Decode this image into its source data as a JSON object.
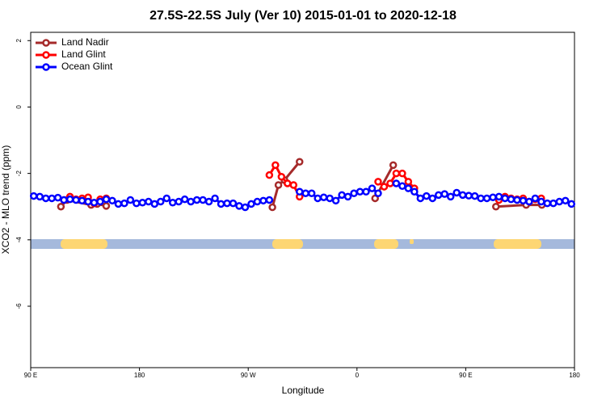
{
  "chart_data": {
    "type": "line",
    "title": "27.5S-22.5S July (Ver 10)   2015-01-01 to 2020-12-18",
    "x_label": "Longitude",
    "y_label": "XCO2 - MLO trend (ppm)",
    "xlim": [
      90,
      540
    ],
    "xticks": [
      {
        "value": 90,
        "label": "90 E"
      },
      {
        "value": 180,
        "label": "180"
      },
      {
        "value": 270,
        "label": "90 W"
      },
      {
        "value": 360,
        "label": "0"
      },
      {
        "value": 450,
        "label": "90 E"
      },
      {
        "value": 540,
        "label": "180"
      }
    ],
    "ylim": [
      -7.85,
      2.25
    ],
    "yticks": [
      2,
      0,
      -2,
      -4,
      -6
    ],
    "legend": "top-left",
    "series": [
      {
        "name": "Land Nadir",
        "color": "#a52a2a",
        "x": [
          115,
          120,
          140,
          145,
          152.5,
          200,
          290,
          295,
          300,
          312.5,
          350,
          375,
          390,
          430,
          475,
          500,
          513
        ],
        "values": [
          -3.0,
          -2.8,
          -2.95,
          -2.92,
          -2.98,
          null,
          -3.02,
          -2.35,
          -2.2,
          -1.65,
          null,
          -2.75,
          -1.75,
          null,
          -3.0,
          -2.95,
          -2.95
        ]
      },
      {
        "name": "Land Glint",
        "color": "#ff0000",
        "x": [
          117.5,
          122.5,
          127.5,
          132.5,
          137.5,
          142.5,
          147.5,
          152.5,
          200,
          287.5,
          292.5,
          297.5,
          302.5,
          307.5,
          312.5,
          350,
          377.5,
          382.5,
          387.5,
          392.5,
          397.5,
          402.5,
          407.5,
          440,
          477.5,
          482.5,
          487.5,
          492.5,
          497.5,
          502.5,
          507.5,
          512.5
        ],
        "values": [
          -2.8,
          -2.7,
          -2.78,
          -2.75,
          -2.72,
          -2.9,
          -2.78,
          -2.75,
          null,
          -2.05,
          -1.75,
          -2.1,
          -2.3,
          -2.35,
          -2.7,
          null,
          -2.25,
          -2.4,
          -2.3,
          -2.0,
          -2.0,
          -2.25,
          -2.45,
          null,
          -2.8,
          -2.7,
          -2.75,
          -2.78,
          -2.75,
          -2.85,
          -2.78,
          -2.75
        ]
      },
      {
        "name": "Ocean Glint",
        "color": "#0000ff",
        "x": [
          92.5,
          97.5,
          102.5,
          107.5,
          112.5,
          117.5,
          122.5,
          127.5,
          132.5,
          137.5,
          142.5,
          147.5,
          152.5,
          157.5,
          162.5,
          167.5,
          172.5,
          177.5,
          182.5,
          187.5,
          192.5,
          197.5,
          202.5,
          207.5,
          212.5,
          217.5,
          222.5,
          227.5,
          232.5,
          237.5,
          242.5,
          247.5,
          252.5,
          257.5,
          262.5,
          267.5,
          272.5,
          277.5,
          282.5,
          287.5,
          292.5,
          297.5,
          302.5,
          307.5,
          312.5,
          317.5,
          322.5,
          327.5,
          332.5,
          337.5,
          342.5,
          347.5,
          352.5,
          357.5,
          362.5,
          367.5,
          372.5,
          377.5,
          382.5,
          387.5,
          392.5,
          397.5,
          402.5,
          407.5,
          412.5,
          417.5,
          422.5,
          427.5,
          432.5,
          437.5,
          442.5,
          447.5,
          452.5,
          457.5,
          462.5,
          467.5,
          472.5,
          477.5,
          482.5,
          487.5,
          492.5,
          497.5,
          502.5,
          507.5,
          512.5,
          517.5,
          522.5,
          527.5,
          532.5,
          537.5
        ],
        "values": [
          -2.68,
          -2.7,
          -2.75,
          -2.75,
          -2.73,
          -2.8,
          -2.78,
          -2.8,
          -2.82,
          -2.85,
          -2.88,
          -2.85,
          -2.78,
          -2.82,
          -2.92,
          -2.9,
          -2.8,
          -2.9,
          -2.88,
          -2.85,
          -2.92,
          -2.85,
          -2.75,
          -2.88,
          -2.85,
          -2.78,
          -2.85,
          -2.8,
          -2.8,
          -2.85,
          -2.75,
          -2.92,
          -2.9,
          -2.9,
          -2.98,
          -3.02,
          -2.92,
          -2.85,
          -2.82,
          -2.8,
          null,
          null,
          null,
          null,
          -2.55,
          -2.6,
          -2.6,
          -2.75,
          -2.72,
          -2.75,
          -2.82,
          -2.65,
          -2.7,
          -2.6,
          -2.55,
          -2.55,
          -2.45,
          -2.6,
          null,
          null,
          -2.3,
          -2.38,
          -2.45,
          -2.55,
          -2.75,
          -2.68,
          -2.75,
          -2.65,
          -2.62,
          -2.7,
          -2.58,
          -2.65,
          -2.67,
          -2.68,
          -2.75,
          -2.75,
          -2.72,
          -2.7,
          -2.75,
          -2.78,
          -2.8,
          -2.82,
          -2.85,
          -2.75,
          -2.85,
          -2.9,
          -2.9,
          -2.85,
          -2.82,
          -2.92
        ]
      }
    ]
  }
}
